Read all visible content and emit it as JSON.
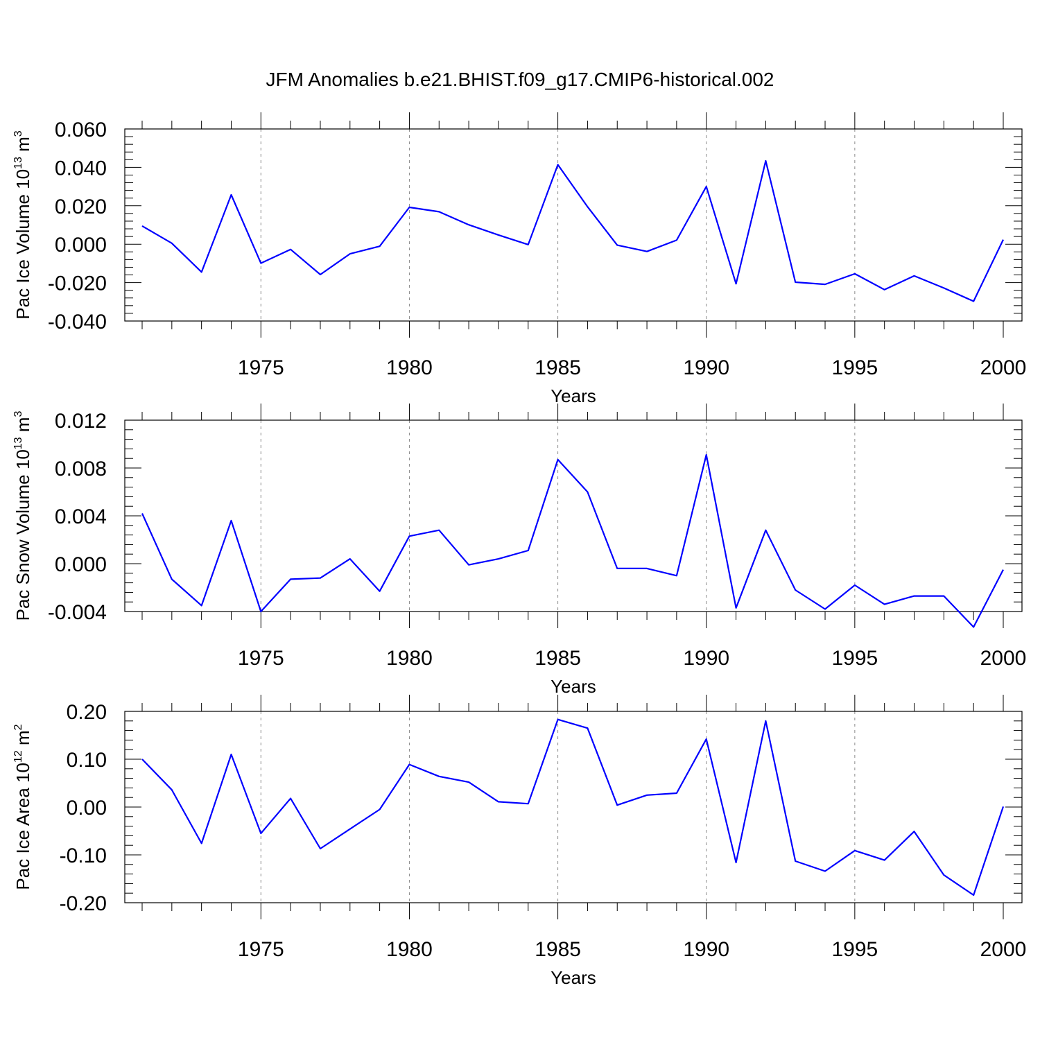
{
  "title": "JFM Anomalies b.e21.BHIST.f09_g17.CMIP6-historical.002",
  "colors": {
    "line": "#0000ff",
    "axis": "#000000",
    "grid": "#8a8a8a"
  },
  "chart_data": [
    {
      "type": "line",
      "ylabel_main": "Pac Ice Volume 10",
      "ylabel_exp": "13",
      "ylabel_unit": " m",
      "ylabel_unit_exp": "3",
      "xlabel": "Years",
      "xlim": [
        1971,
        2001
      ],
      "ylim": [
        -0.04,
        0.065
      ],
      "xticks": [
        1975,
        1980,
        1985,
        1990,
        1995,
        2000
      ],
      "xtick_labels": [
        "1975",
        "1980",
        "1985",
        "1990",
        "1995",
        "2000"
      ],
      "yticks": [
        -0.04,
        -0.02,
        0.0,
        0.02,
        0.04,
        0.06
      ],
      "ytick_labels": [
        "-0.040",
        "-0.020",
        "0.000",
        "0.020",
        "0.040",
        "0.060"
      ],
      "grid": "vertical dashed at labeled years",
      "x": [
        1971,
        1972,
        1973,
        1974,
        1975,
        1976,
        1977,
        1978,
        1979,
        1980,
        1981,
        1982,
        1983,
        1984,
        1985,
        1986,
        1987,
        1988,
        1989,
        1990,
        1991,
        1992,
        1993,
        1994,
        1995,
        1996,
        1997,
        1998,
        1999,
        2000
      ],
      "y": [
        0.0095,
        0.0005,
        -0.0145,
        0.0257,
        -0.0099,
        -0.0027,
        -0.0158,
        -0.005,
        -0.0011,
        0.0192,
        0.0169,
        0.0101,
        0.0048,
        -0.0002,
        0.0414,
        0.0195,
        -0.0005,
        -0.0038,
        0.0021,
        0.03,
        -0.0206,
        0.0434,
        -0.0198,
        -0.0209,
        -0.0154,
        -0.0237,
        -0.0165,
        -0.0228,
        -0.0297,
        0.0024
      ]
    },
    {
      "type": "line",
      "ylabel_main": "Pac Snow Volume 10",
      "ylabel_exp": "13",
      "ylabel_unit": " m",
      "ylabel_unit_exp": "3",
      "xlabel": "Years",
      "xlim": [
        1971,
        2001
      ],
      "ylim": [
        -0.006,
        0.013
      ],
      "xticks": [
        1975,
        1980,
        1985,
        1990,
        1995,
        2000
      ],
      "xtick_labels": [
        "1975",
        "1980",
        "1985",
        "1990",
        "1995",
        "2000"
      ],
      "yticks": [
        -0.004,
        0.0,
        0.004,
        0.008,
        0.012
      ],
      "ytick_labels": [
        "-0.004",
        "0.000",
        "0.004",
        "0.008",
        "0.012"
      ],
      "grid": "vertical dashed at labeled years",
      "x": [
        1971,
        1972,
        1973,
        1974,
        1975,
        1976,
        1977,
        1978,
        1979,
        1980,
        1981,
        1982,
        1983,
        1984,
        1985,
        1986,
        1987,
        1988,
        1989,
        1990,
        1991,
        1992,
        1993,
        1994,
        1995,
        1996,
        1997,
        1998,
        1999,
        2000
      ],
      "y": [
        0.0042,
        -0.0013,
        -0.0035,
        0.0036,
        -0.004,
        -0.0013,
        -0.0012,
        0.0004,
        -0.0023,
        0.0023,
        0.0028,
        -0.0001,
        0.0004,
        0.0011,
        0.0087,
        0.006,
        -0.0004,
        -0.0004,
        -0.001,
        0.0091,
        -0.0037,
        0.0028,
        -0.0022,
        -0.0038,
        -0.0018,
        -0.0034,
        -0.0027,
        -0.0027,
        -0.0053,
        -0.0005
      ]
    },
    {
      "type": "line",
      "ylabel_main": "Pac Ice Area 10",
      "ylabel_exp": "12",
      "ylabel_unit": " m",
      "ylabel_unit_exp": "2",
      "xlabel": "Years",
      "xlim": [
        1971,
        2001
      ],
      "ylim": [
        -0.2,
        0.2
      ],
      "xticks": [
        1975,
        1980,
        1985,
        1990,
        1995,
        2000
      ],
      "xtick_labels": [
        "1975",
        "1980",
        "1985",
        "1990",
        "1995",
        "2000"
      ],
      "yticks": [
        -0.2,
        -0.1,
        0.0,
        0.1,
        0.2
      ],
      "ytick_labels": [
        "-0.20",
        "-0.10",
        "0.00",
        "0.10",
        "0.20"
      ],
      "grid": "vertical dashed at labeled years",
      "x": [
        1971,
        1972,
        1973,
        1974,
        1975,
        1976,
        1977,
        1978,
        1979,
        1980,
        1981,
        1982,
        1983,
        1984,
        1985,
        1986,
        1987,
        1988,
        1989,
        1990,
        1991,
        1992,
        1993,
        1994,
        1995,
        1996,
        1997,
        1998,
        1999,
        2000
      ],
      "y": [
        0.1,
        0.036,
        -0.076,
        0.11,
        -0.055,
        0.018,
        -0.087,
        -0.046,
        -0.005,
        0.089,
        0.064,
        0.052,
        0.011,
        0.007,
        0.183,
        0.165,
        0.004,
        0.025,
        0.029,
        0.142,
        -0.116,
        0.18,
        -0.113,
        -0.134,
        -0.091,
        -0.111,
        -0.051,
        -0.142,
        -0.184,
        0.001
      ]
    }
  ]
}
